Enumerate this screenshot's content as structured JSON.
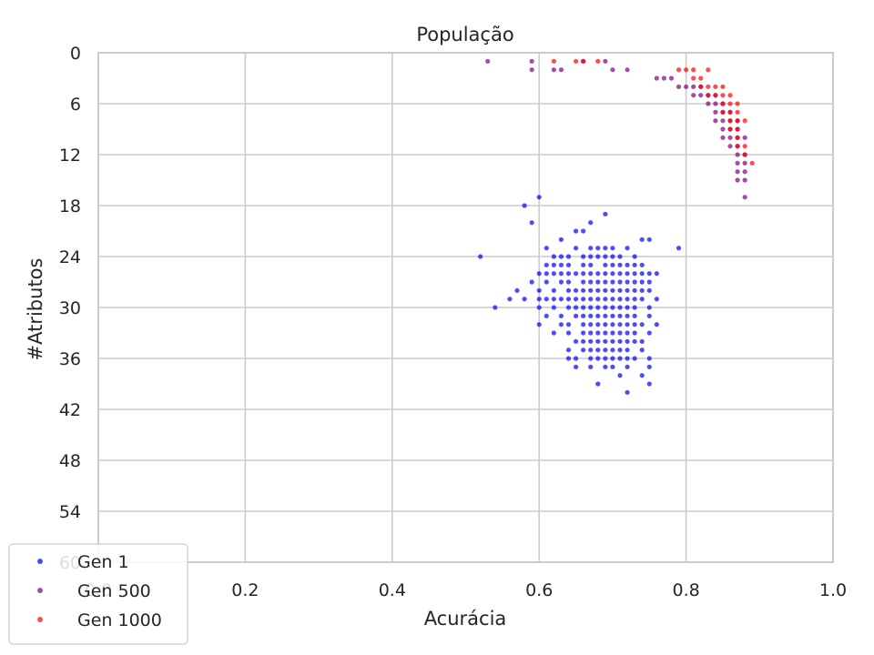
{
  "chart_data": {
    "type": "scatter",
    "title": "População",
    "xlabel": "Acurácia",
    "ylabel": "#Atributos",
    "xlim": [
      0.0,
      1.0
    ],
    "ylim": [
      60,
      0
    ],
    "y_inverted": true,
    "x_ticks": [
      "0.0",
      "0.2",
      "0.4",
      "0.6",
      "0.8",
      "1.0"
    ],
    "y_ticks": [
      "0",
      "6",
      "12",
      "18",
      "24",
      "30",
      "36",
      "42",
      "48",
      "54",
      "60"
    ],
    "grid": true,
    "legend_position": "lower-left",
    "series": [
      {
        "name": "Gen 1",
        "color": "#0000ff",
        "points": [
          [
            0.6,
            17
          ],
          [
            0.58,
            18
          ],
          [
            0.69,
            19
          ],
          [
            0.67,
            20
          ],
          [
            0.59,
            20
          ],
          [
            0.65,
            21
          ],
          [
            0.66,
            21
          ],
          [
            0.75,
            22
          ],
          [
            0.63,
            22
          ],
          [
            0.74,
            22
          ],
          [
            0.65,
            23
          ],
          [
            0.72,
            23
          ],
          [
            0.61,
            23
          ],
          [
            0.67,
            23
          ],
          [
            0.68,
            23
          ],
          [
            0.69,
            23
          ],
          [
            0.7,
            23
          ],
          [
            0.79,
            23
          ],
          [
            0.52,
            24
          ],
          [
            0.62,
            24
          ],
          [
            0.63,
            24
          ],
          [
            0.64,
            24
          ],
          [
            0.66,
            24
          ],
          [
            0.67,
            24
          ],
          [
            0.68,
            24
          ],
          [
            0.69,
            24
          ],
          [
            0.7,
            24
          ],
          [
            0.71,
            24
          ],
          [
            0.73,
            24
          ],
          [
            0.61,
            25
          ],
          [
            0.62,
            25
          ],
          [
            0.63,
            25
          ],
          [
            0.64,
            25
          ],
          [
            0.66,
            25
          ],
          [
            0.67,
            25
          ],
          [
            0.69,
            25
          ],
          [
            0.7,
            25
          ],
          [
            0.71,
            25
          ],
          [
            0.72,
            25
          ],
          [
            0.73,
            25
          ],
          [
            0.74,
            25
          ],
          [
            0.6,
            26
          ],
          [
            0.61,
            26
          ],
          [
            0.62,
            26
          ],
          [
            0.63,
            26
          ],
          [
            0.64,
            26
          ],
          [
            0.65,
            26
          ],
          [
            0.66,
            26
          ],
          [
            0.67,
            26
          ],
          [
            0.68,
            26
          ],
          [
            0.69,
            26
          ],
          [
            0.7,
            26
          ],
          [
            0.71,
            26
          ],
          [
            0.72,
            26
          ],
          [
            0.73,
            26
          ],
          [
            0.74,
            26
          ],
          [
            0.75,
            26
          ],
          [
            0.76,
            26
          ],
          [
            0.59,
            27
          ],
          [
            0.61,
            27
          ],
          [
            0.63,
            27
          ],
          [
            0.64,
            27
          ],
          [
            0.66,
            27
          ],
          [
            0.67,
            27
          ],
          [
            0.68,
            27
          ],
          [
            0.69,
            27
          ],
          [
            0.7,
            27
          ],
          [
            0.71,
            27
          ],
          [
            0.72,
            27
          ],
          [
            0.73,
            27
          ],
          [
            0.74,
            27
          ],
          [
            0.75,
            27
          ],
          [
            0.57,
            28
          ],
          [
            0.6,
            28
          ],
          [
            0.62,
            28
          ],
          [
            0.64,
            28
          ],
          [
            0.65,
            28
          ],
          [
            0.66,
            28
          ],
          [
            0.67,
            28
          ],
          [
            0.68,
            28
          ],
          [
            0.69,
            28
          ],
          [
            0.7,
            28
          ],
          [
            0.71,
            28
          ],
          [
            0.72,
            28
          ],
          [
            0.73,
            28
          ],
          [
            0.74,
            28
          ],
          [
            0.75,
            28
          ],
          [
            0.56,
            29
          ],
          [
            0.58,
            29
          ],
          [
            0.6,
            29
          ],
          [
            0.61,
            29
          ],
          [
            0.62,
            29
          ],
          [
            0.63,
            29
          ],
          [
            0.64,
            29
          ],
          [
            0.65,
            29
          ],
          [
            0.66,
            29
          ],
          [
            0.67,
            29
          ],
          [
            0.68,
            29
          ],
          [
            0.69,
            29
          ],
          [
            0.7,
            29
          ],
          [
            0.71,
            29
          ],
          [
            0.72,
            29
          ],
          [
            0.73,
            29
          ],
          [
            0.74,
            29
          ],
          [
            0.76,
            29
          ],
          [
            0.54,
            30
          ],
          [
            0.6,
            30
          ],
          [
            0.62,
            30
          ],
          [
            0.64,
            30
          ],
          [
            0.65,
            30
          ],
          [
            0.66,
            30
          ],
          [
            0.67,
            30
          ],
          [
            0.68,
            30
          ],
          [
            0.69,
            30
          ],
          [
            0.7,
            30
          ],
          [
            0.71,
            30
          ],
          [
            0.72,
            30
          ],
          [
            0.73,
            30
          ],
          [
            0.75,
            30
          ],
          [
            0.61,
            31
          ],
          [
            0.63,
            31
          ],
          [
            0.65,
            31
          ],
          [
            0.66,
            31
          ],
          [
            0.67,
            31
          ],
          [
            0.68,
            31
          ],
          [
            0.69,
            31
          ],
          [
            0.7,
            31
          ],
          [
            0.71,
            31
          ],
          [
            0.72,
            31
          ],
          [
            0.73,
            31
          ],
          [
            0.75,
            31
          ],
          [
            0.6,
            32
          ],
          [
            0.63,
            32
          ],
          [
            0.64,
            32
          ],
          [
            0.66,
            32
          ],
          [
            0.67,
            32
          ],
          [
            0.68,
            32
          ],
          [
            0.69,
            32
          ],
          [
            0.7,
            32
          ],
          [
            0.71,
            32
          ],
          [
            0.72,
            32
          ],
          [
            0.73,
            32
          ],
          [
            0.74,
            32
          ],
          [
            0.76,
            32
          ],
          [
            0.62,
            33
          ],
          [
            0.64,
            33
          ],
          [
            0.66,
            33
          ],
          [
            0.67,
            33
          ],
          [
            0.68,
            33
          ],
          [
            0.69,
            33
          ],
          [
            0.7,
            33
          ],
          [
            0.71,
            33
          ],
          [
            0.72,
            33
          ],
          [
            0.73,
            33
          ],
          [
            0.75,
            33
          ],
          [
            0.65,
            34
          ],
          [
            0.66,
            34
          ],
          [
            0.67,
            34
          ],
          [
            0.68,
            34
          ],
          [
            0.69,
            34
          ],
          [
            0.7,
            34
          ],
          [
            0.71,
            34
          ],
          [
            0.72,
            34
          ],
          [
            0.73,
            34
          ],
          [
            0.74,
            34
          ],
          [
            0.64,
            35
          ],
          [
            0.66,
            35
          ],
          [
            0.67,
            35
          ],
          [
            0.68,
            35
          ],
          [
            0.69,
            35
          ],
          [
            0.7,
            35
          ],
          [
            0.71,
            35
          ],
          [
            0.72,
            35
          ],
          [
            0.74,
            35
          ],
          [
            0.64,
            36
          ],
          [
            0.65,
            36
          ],
          [
            0.67,
            36
          ],
          [
            0.68,
            36
          ],
          [
            0.69,
            36
          ],
          [
            0.7,
            36
          ],
          [
            0.71,
            36
          ],
          [
            0.72,
            36
          ],
          [
            0.73,
            36
          ],
          [
            0.75,
            36
          ],
          [
            0.65,
            37
          ],
          [
            0.67,
            37
          ],
          [
            0.69,
            37
          ],
          [
            0.7,
            37
          ],
          [
            0.72,
            37
          ],
          [
            0.75,
            37
          ],
          [
            0.71,
            38
          ],
          [
            0.74,
            38
          ],
          [
            0.68,
            39
          ],
          [
            0.75,
            39
          ],
          [
            0.72,
            40
          ]
        ]
      },
      {
        "name": "Gen 500",
        "color": "#800080",
        "points": [
          [
            0.53,
            1
          ],
          [
            0.59,
            1
          ],
          [
            0.59,
            2
          ],
          [
            0.62,
            2
          ],
          [
            0.63,
            2
          ],
          [
            0.66,
            1
          ],
          [
            0.69,
            1
          ],
          [
            0.7,
            2
          ],
          [
            0.72,
            2
          ],
          [
            0.76,
            3
          ],
          [
            0.77,
            3
          ],
          [
            0.78,
            3
          ],
          [
            0.79,
            4
          ],
          [
            0.8,
            4
          ],
          [
            0.81,
            4
          ],
          [
            0.82,
            4
          ],
          [
            0.81,
            5
          ],
          [
            0.82,
            5
          ],
          [
            0.83,
            5
          ],
          [
            0.84,
            5
          ],
          [
            0.83,
            6
          ],
          [
            0.84,
            6
          ],
          [
            0.85,
            6
          ],
          [
            0.84,
            7
          ],
          [
            0.85,
            7
          ],
          [
            0.86,
            7
          ],
          [
            0.84,
            8
          ],
          [
            0.85,
            8
          ],
          [
            0.86,
            8
          ],
          [
            0.87,
            8
          ],
          [
            0.85,
            9
          ],
          [
            0.86,
            9
          ],
          [
            0.87,
            9
          ],
          [
            0.85,
            10
          ],
          [
            0.86,
            10
          ],
          [
            0.87,
            10
          ],
          [
            0.88,
            10
          ],
          [
            0.86,
            11
          ],
          [
            0.87,
            11
          ],
          [
            0.87,
            12
          ],
          [
            0.88,
            12
          ],
          [
            0.87,
            13
          ],
          [
            0.88,
            13
          ],
          [
            0.87,
            14
          ],
          [
            0.88,
            14
          ],
          [
            0.87,
            15
          ],
          [
            0.88,
            15
          ],
          [
            0.88,
            17
          ]
        ]
      },
      {
        "name": "Gen 1000",
        "color": "#ff0000",
        "points": [
          [
            0.62,
            1
          ],
          [
            0.66,
            1
          ],
          [
            0.65,
            1
          ],
          [
            0.68,
            1
          ],
          [
            0.79,
            2
          ],
          [
            0.8,
            2
          ],
          [
            0.81,
            2
          ],
          [
            0.83,
            2
          ],
          [
            0.81,
            3
          ],
          [
            0.82,
            3
          ],
          [
            0.82,
            4
          ],
          [
            0.83,
            4
          ],
          [
            0.84,
            4
          ],
          [
            0.85,
            4
          ],
          [
            0.83,
            5
          ],
          [
            0.84,
            5
          ],
          [
            0.85,
            5
          ],
          [
            0.86,
            5
          ],
          [
            0.85,
            6
          ],
          [
            0.86,
            6
          ],
          [
            0.87,
            6
          ],
          [
            0.85,
            7
          ],
          [
            0.86,
            7
          ],
          [
            0.87,
            7
          ],
          [
            0.86,
            8
          ],
          [
            0.87,
            8
          ],
          [
            0.88,
            8
          ],
          [
            0.86,
            9
          ],
          [
            0.87,
            9
          ],
          [
            0.87,
            10
          ],
          [
            0.87,
            11
          ],
          [
            0.88,
            11
          ],
          [
            0.88,
            12
          ],
          [
            0.89,
            13
          ]
        ]
      }
    ]
  }
}
